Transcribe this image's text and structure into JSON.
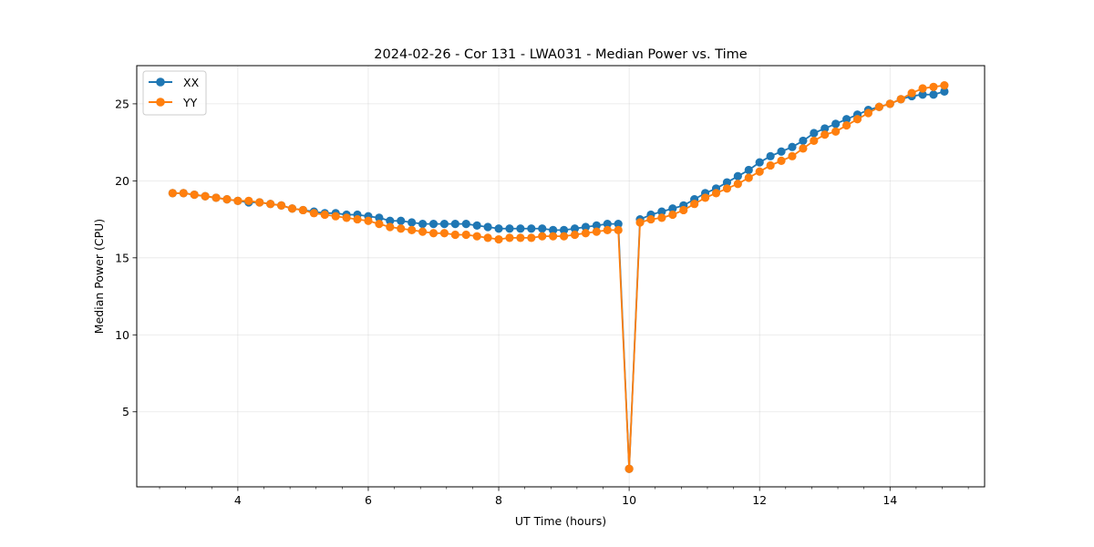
{
  "chart_data": {
    "type": "line",
    "title": "2024-02-26 - Cor 131 - LWA031 - Median Power vs. Time",
    "xlabel": "UT Time (hours)",
    "ylabel": "Median Power (CPU)",
    "xlim": [
      2.45,
      15.45
    ],
    "ylim": [
      0.13,
      27.48
    ],
    "xticks": [
      4,
      6,
      8,
      10,
      12,
      14
    ],
    "xtick_labels": [
      "4",
      "6",
      "8",
      "10",
      "12",
      "14"
    ],
    "xminor_step": 0.4,
    "yticks": [
      5,
      10,
      15,
      20,
      25
    ],
    "ytick_labels": [
      "5",
      "10",
      "15",
      "20",
      "25"
    ],
    "grid": true,
    "legend_position": "top-left",
    "x": [
      3.0,
      3.1667,
      3.3333,
      3.5,
      3.6667,
      3.8333,
      4.0,
      4.1667,
      4.3333,
      4.5,
      4.6667,
      4.8333,
      5.0,
      5.1667,
      5.3333,
      5.5,
      5.6667,
      5.8333,
      6.0,
      6.1667,
      6.3333,
      6.5,
      6.6667,
      6.8333,
      7.0,
      7.1667,
      7.3333,
      7.5,
      7.6667,
      7.8333,
      8.0,
      8.1667,
      8.3333,
      8.5,
      8.6667,
      8.8333,
      9.0,
      9.1667,
      9.3333,
      9.5,
      9.6667,
      9.8333,
      10.0,
      10.1667,
      10.3333,
      10.5,
      10.6667,
      10.8333,
      11.0,
      11.1667,
      11.3333,
      11.5,
      11.6667,
      11.8333,
      12.0,
      12.1667,
      12.3333,
      12.5,
      12.6667,
      12.8333,
      13.0,
      13.1667,
      13.3333,
      13.5,
      13.6667,
      13.8333,
      14.0,
      14.1667,
      14.3333,
      14.5,
      14.6667,
      14.8333
    ],
    "series": [
      {
        "name": "XX",
        "color": "#1f77b4",
        "values": [
          19.2,
          19.2,
          19.1,
          19.0,
          18.9,
          18.8,
          18.7,
          18.6,
          18.6,
          18.5,
          18.4,
          18.2,
          18.1,
          18.0,
          17.9,
          17.9,
          17.8,
          17.8,
          17.7,
          17.6,
          17.4,
          17.4,
          17.3,
          17.2,
          17.2,
          17.2,
          17.2,
          17.2,
          17.1,
          17.0,
          16.9,
          16.9,
          16.9,
          16.9,
          16.9,
          16.8,
          16.8,
          16.9,
          17.0,
          17.1,
          17.2,
          17.2,
          1.3,
          17.5,
          17.8,
          18.0,
          18.2,
          18.4,
          18.8,
          19.2,
          19.5,
          19.9,
          20.3,
          20.7,
          21.2,
          21.6,
          21.9,
          22.2,
          22.6,
          23.1,
          23.4,
          23.7,
          24.0,
          24.3,
          24.6,
          24.8,
          25.0,
          25.3,
          25.5,
          25.6,
          25.6,
          25.8
        ]
      },
      {
        "name": "YY",
        "color": "#ff7f0e",
        "values": [
          19.2,
          19.2,
          19.1,
          19.0,
          18.9,
          18.8,
          18.7,
          18.7,
          18.6,
          18.5,
          18.4,
          18.2,
          18.1,
          17.9,
          17.8,
          17.7,
          17.6,
          17.5,
          17.4,
          17.2,
          17.0,
          16.9,
          16.8,
          16.7,
          16.6,
          16.6,
          16.5,
          16.5,
          16.4,
          16.3,
          16.2,
          16.3,
          16.3,
          16.3,
          16.4,
          16.4,
          16.4,
          16.5,
          16.6,
          16.7,
          16.8,
          16.8,
          1.3,
          17.3,
          17.5,
          17.6,
          17.8,
          18.1,
          18.5,
          18.9,
          19.2,
          19.5,
          19.8,
          20.2,
          20.6,
          21.0,
          21.3,
          21.6,
          22.1,
          22.6,
          23.0,
          23.2,
          23.6,
          24.0,
          24.4,
          24.8,
          25.0,
          25.3,
          25.7,
          26.0,
          26.1,
          26.2
        ]
      }
    ]
  }
}
